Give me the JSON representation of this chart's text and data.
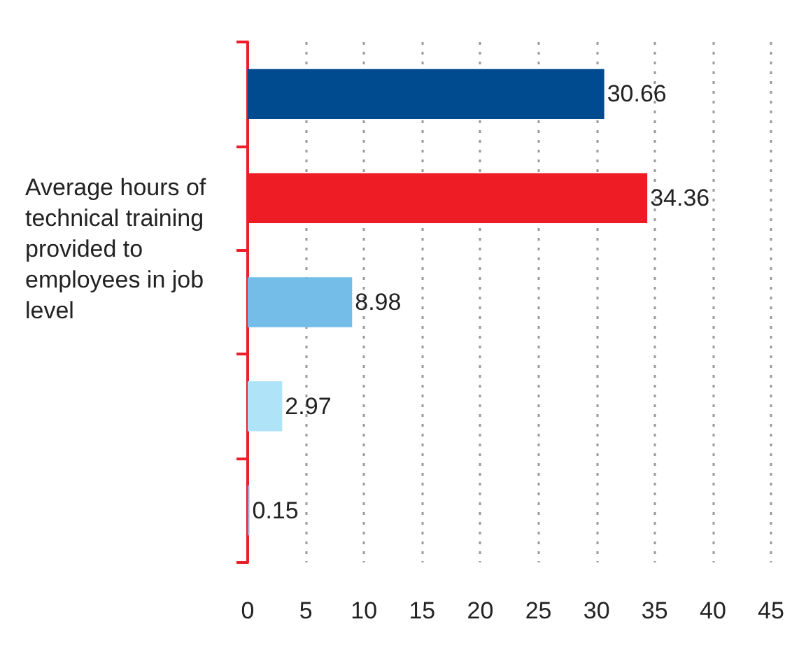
{
  "chart_data": {
    "type": "bar",
    "orientation": "horizontal",
    "ylabel": "Average hours of technical training provided to employees in job level",
    "categories": [
      null,
      null,
      null,
      null,
      null
    ],
    "values": [
      30.66,
      34.36,
      8.98,
      2.97,
      0.15
    ],
    "colors": [
      "#004a8f",
      "#ee1c25",
      "#74bde8",
      "#aee3f8",
      "#a9a6d6"
    ],
    "xlim": [
      0,
      45
    ],
    "xticks": [
      0,
      5,
      10,
      15,
      20,
      25,
      30,
      35,
      40,
      45
    ],
    "grid": "x",
    "data_labels": true
  }
}
